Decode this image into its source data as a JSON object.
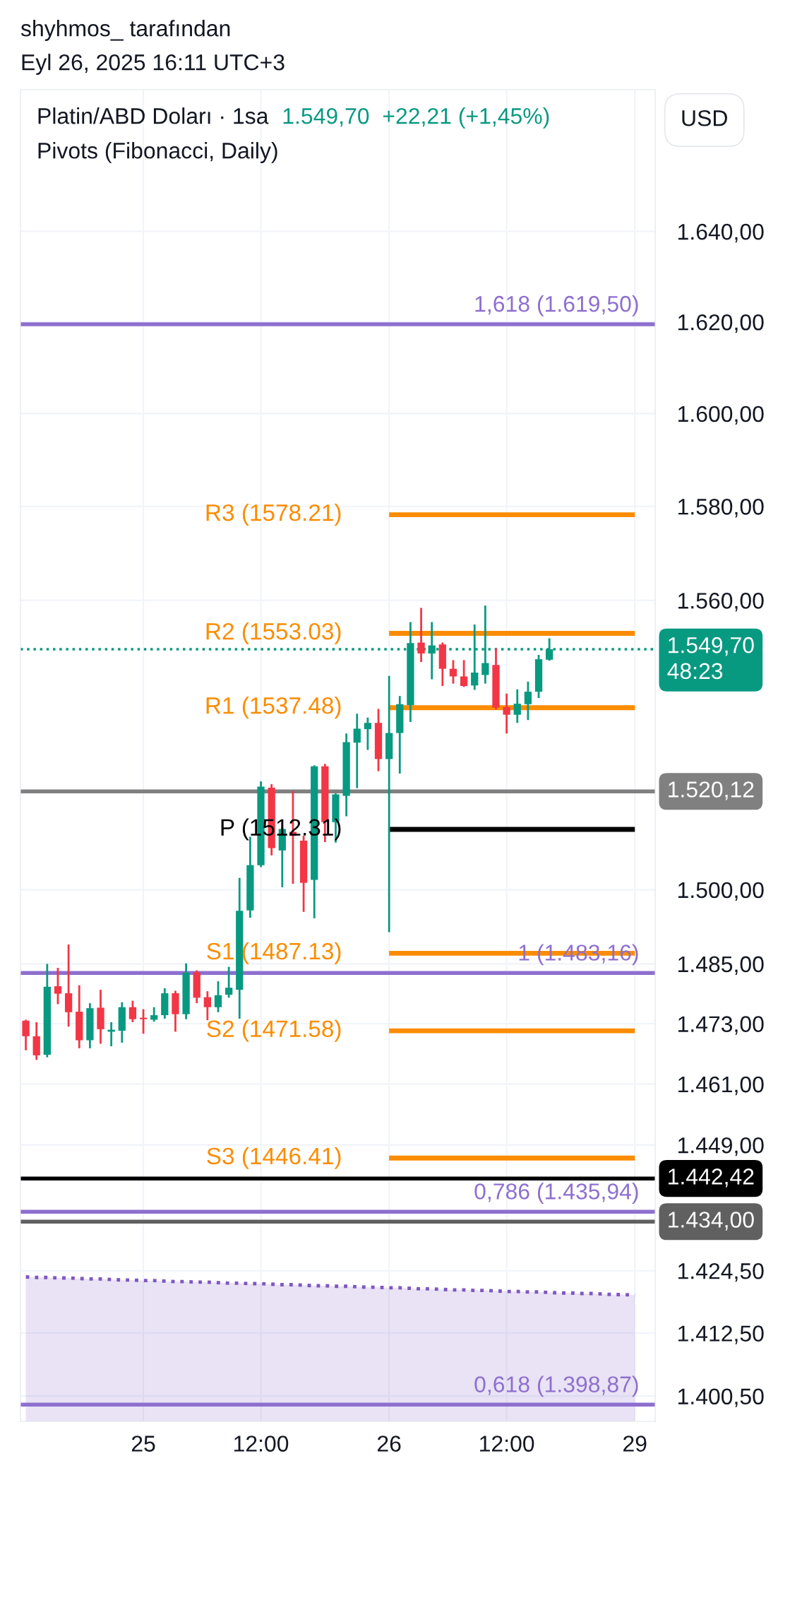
{
  "chart_data": {
    "type": "candlestick",
    "title": "Platin/ABD Doları · 1sa",
    "subtitle": "Pivots (Fibonacci, Daily)",
    "annotations": [
      "shyhmos_ tarafından",
      "Eyl 26, 2025 16:11 UTC+3",
      "1.549,70  +22,21 (+1,45%)",
      "USD",
      {
        "text": "R3 (1578.21)",
        "x": "26",
        "y": 1578.21
      },
      {
        "text": "R2 (1553.03)",
        "x": "26",
        "y": 1553.03
      },
      {
        "text": "R1 (1537.48)",
        "x": "26",
        "y": 1537.48
      },
      {
        "text": "P (1512.31)",
        "x": "26",
        "y": 1512.31
      },
      {
        "text": "S1 (1487.13)",
        "x": "26",
        "y": 1487.13
      },
      {
        "text": "S2 (1471.58)",
        "x": "26",
        "y": 1471.58
      },
      {
        "text": "S3 (1446.41)",
        "x": "26",
        "y": 1446.41
      }
    ],
    "categories": [
      null,
      null,
      null,
      null,
      null,
      null,
      null,
      null,
      null,
      null,
      null,
      "25",
      null,
      null,
      null,
      null,
      null,
      null,
      null,
      null,
      null,
      null,
      "12:00",
      null,
      null,
      null,
      null,
      null,
      null,
      null,
      null,
      null,
      null,
      null,
      "26",
      null,
      null,
      null,
      null,
      null,
      null,
      null,
      null,
      null,
      null,
      "12:00",
      null,
      null,
      null,
      null,
      null,
      null,
      null,
      null,
      null,
      null,
      null,
      "29"
    ],
    "ohlc": [
      [
        1473.6,
        1473.6,
        1467.9,
        1470.5
      ],
      [
        1470.5,
        1473.1,
        1466.0,
        1466.7
      ],
      [
        1466.8,
        1484.8,
        1466.5,
        1480.4
      ],
      [
        1480.5,
        1484.0,
        1477.1,
        1479.0
      ],
      [
        1479.1,
        1488.7,
        1472.6,
        1475.3
      ],
      [
        1475.4,
        1480.5,
        1468.3,
        1469.7
      ],
      [
        1469.7,
        1476.9,
        1468.3,
        1476.1
      ],
      [
        1476.2,
        1479.6,
        1469.2,
        1471.9
      ],
      [
        1471.4,
        1473.1,
        1468.7,
        1471.8
      ],
      [
        1471.6,
        1477.1,
        1469.4,
        1476.3
      ],
      [
        1476.3,
        1477.4,
        1473.5,
        1473.9
      ],
      [
        1474.2,
        1475.7,
        1471.2,
        1473.9
      ],
      [
        1473.8,
        1476.1,
        1473.6,
        1474.7
      ],
      [
        1474.7,
        1479.9,
        1474.2,
        1479.1
      ],
      [
        1479.1,
        1479.4,
        1471.6,
        1474.9
      ],
      [
        1474.9,
        1484.9,
        1474.1,
        1483.2
      ],
      [
        1483.3,
        1483.5,
        1477.3,
        1478.2
      ],
      [
        1478.3,
        1479.3,
        1473.9,
        1476.3
      ],
      [
        1476.3,
        1481.3,
        1475.5,
        1478.7
      ],
      [
        1478.8,
        1484.2,
        1478.4,
        1480.2
      ],
      [
        1479.8,
        1502.2,
        1474.2,
        1495.7
      ],
      [
        1495.8,
        1510.6,
        1494.5,
        1505.0
      ],
      [
        1505.0,
        1522.0,
        1504.8,
        1521.1
      ],
      [
        1520.9,
        1521.4,
        1507.2,
        1508.5
      ],
      [
        1508.0,
        1512.6,
        1500.7,
        1512.4
      ],
      [
        1511.8,
        1520.0,
        1501.4,
        1511.0
      ],
      [
        1510.0,
        1510.8,
        1495.7,
        1501.4
      ],
      [
        1502.0,
        1525.3,
        1494.4,
        1525.3
      ],
      [
        1525.3,
        1525.6,
        1509.9,
        1513.8
      ],
      [
        1513.8,
        1519.5,
        1509.8,
        1519.5
      ],
      [
        1519.2,
        1531.9,
        1515.2,
        1530.3
      ],
      [
        1530.2,
        1536.0,
        1521.0,
        1533.1
      ],
      [
        1533.0,
        1535.2,
        1528.9,
        1534.3
      ],
      [
        1534.3,
        1537.0,
        1524.5,
        1526.8
      ],
      [
        1526.8,
        1543.9,
        1491.6,
        1532.2
      ],
      [
        1532.2,
        1539.7,
        1524.0,
        1538.2
      ],
      [
        1538.0,
        1555.2,
        1534.7,
        1551.0
      ],
      [
        1551.1,
        1558.2,
        1547.2,
        1548.8
      ],
      [
        1548.8,
        1555.2,
        1543.6,
        1550.5
      ],
      [
        1550.7,
        1550.9,
        1542.2,
        1545.6
      ],
      [
        1545.6,
        1547.2,
        1542.7,
        1544.0
      ],
      [
        1544.0,
        1547.2,
        1542.0,
        1542.0
      ],
      [
        1542.1,
        1554.7,
        1541.4,
        1544.8
      ],
      [
        1544.3,
        1558.7,
        1542.7,
        1546.8
      ],
      [
        1546.4,
        1549.7,
        1537.3,
        1537.5
      ],
      [
        1537.6,
        1540.2,
        1532.3,
        1536.0
      ],
      [
        1536.0,
        1541.1,
        1534.5,
        1538.3
      ],
      [
        1538.2,
        1542.7,
        1535.1,
        1540.8
      ],
      [
        1540.8,
        1548.3,
        1539.7,
        1547.6
      ],
      [
        1547.5,
        1551.8,
        1547.5,
        1549.7
      ],
      null,
      null,
      null,
      null,
      null,
      null,
      null,
      null
    ],
    "colors": [
      "#f23645",
      "#f23645",
      "#089981",
      "#f23645",
      "#f23645",
      "#f23645",
      "#089981",
      "#f23645",
      "#089981",
      "#089981",
      "#f23645",
      "#f23645",
      "#089981",
      "#089981",
      "#f23645",
      "#089981",
      "#f23645",
      "#f23645",
      "#089981",
      "#089981",
      "#089981",
      "#089981",
      "#089981",
      "#f23645",
      "#089981",
      "#f23645",
      "#f23645",
      "#089981",
      "#f23645",
      "#089981",
      "#089981",
      "#089981",
      "#089981",
      "#f23645",
      "#089981",
      "#089981",
      "#089981",
      "#f23645",
      "#089981",
      "#f23645",
      "#f23645",
      "#f23645",
      "#089981",
      "#089981",
      "#f23645",
      "#f23645",
      "#089981",
      "#089981",
      "#089981",
      "#089981",
      null,
      null,
      null,
      null,
      null,
      null,
      null,
      null
    ],
    "series": [
      {
        "type": "line",
        "color": "#fb8c00",
        "x": [
          "26",
          "29"
        ],
        "values": [
          1578.21,
          1578.21
        ]
      },
      {
        "type": "line",
        "color": "#fb8c00",
        "x": [
          "26",
          "29"
        ],
        "values": [
          1553.03,
          1553.03
        ]
      },
      {
        "type": "line",
        "color": "#fb8c00",
        "x": [
          "26",
          "29"
        ],
        "values": [
          1537.48,
          1537.48
        ]
      },
      {
        "type": "line",
        "color": "#000000",
        "x": [
          "26",
          "29"
        ],
        "values": [
          1512.31,
          1512.31
        ]
      },
      {
        "type": "line",
        "color": "#fb8c00",
        "x": [
          "26",
          "29"
        ],
        "values": [
          1487.13,
          1487.13
        ]
      },
      {
        "type": "line",
        "color": "#fb8c00",
        "x": [
          "26",
          "29"
        ],
        "values": [
          1471.58,
          1471.58
        ]
      },
      {
        "type": "line",
        "color": "#fb8c00",
        "x": [
          "26",
          "29"
        ],
        "values": [
          1446.41,
          1446.41
        ]
      },
      {
        "type": "area",
        "color": "#7e57c2",
        "line_style": "dotted",
        "values": [
          1423.3,
          1423.2,
          1423.2,
          1423.1,
          1423.1,
          1423.0,
          1422.9,
          1422.9,
          1422.8,
          1422.7,
          1422.7,
          1422.6,
          1422.6,
          1422.5,
          1422.4,
          1422.4,
          1422.3,
          1422.3,
          1422.2,
          1422.1,
          1422.1,
          1422.0,
          1422.0,
          1421.9,
          1421.8,
          1421.8,
          1421.7,
          1421.6,
          1421.6,
          1421.5,
          1421.5,
          1421.4,
          1421.3,
          1421.3,
          1421.2,
          1421.2,
          1421.1,
          1421.0,
          1421.0,
          1420.9,
          1420.8,
          1420.8,
          1420.7,
          1420.7,
          1420.6,
          1420.5,
          1420.5,
          1420.4,
          1420.4,
          1420.3,
          1420.2,
          1420.2,
          1420.1,
          1420.1,
          1420.0,
          1419.9,
          1419.9,
          1419.8
        ]
      }
    ],
    "ref_lines": [
      {
        "axis": "y",
        "value": 1619.5,
        "label": "1,618 (1.619,50)",
        "color": "#8e6fcf"
      },
      {
        "axis": "y",
        "value": 1483.16,
        "label": "1 (1.483,16)",
        "color": "#8e6fcf"
      },
      {
        "axis": "y",
        "value": 1435.94,
        "label": "0,786 (1.435,94)",
        "color": "#8e6fcf"
      },
      {
        "axis": "y",
        "value": 1398.87,
        "label": "0,618 (1.398,87)",
        "color": "#8e6fcf"
      },
      {
        "axis": "y",
        "value": 1549.7,
        "label": "1.549,70\n48:23",
        "color": "#089981",
        "line_style": "dotted"
      },
      {
        "axis": "y",
        "value": 1520.12,
        "label": "1.520,12",
        "color": "#808080"
      },
      {
        "axis": "y",
        "value": 1442.42,
        "label": "1.442,42",
        "color": "#000000"
      },
      {
        "axis": "y",
        "value": 1434.0,
        "label": "1.434,00",
        "color": "#606060"
      }
    ],
    "ylim": [
      1395.7,
      1671.8
    ],
    "yticks": [
      {
        "value": 1640,
        "label": "1.640,00"
      },
      {
        "value": 1620,
        "label": "1.620,00"
      },
      {
        "value": 1600,
        "label": "1.600,00"
      },
      {
        "value": 1580,
        "label": "1.580,00"
      },
      {
        "value": 1560,
        "label": "1.560,00"
      },
      {
        "value": 1500,
        "label": "1.500,00"
      },
      {
        "value": 1485,
        "label": "1.485,00"
      },
      {
        "value": 1473,
        "label": "1.473,00"
      },
      {
        "value": 1461,
        "label": "1.461,00"
      },
      {
        "value": 1449,
        "label": "1.449,00"
      },
      {
        "value": 1424.5,
        "label": "1.424,50"
      },
      {
        "value": 1412.5,
        "label": "1.412,50"
      },
      {
        "value": 1400.5,
        "label": "1.400,50"
      }
    ],
    "log": true,
    "grid": true
  }
}
